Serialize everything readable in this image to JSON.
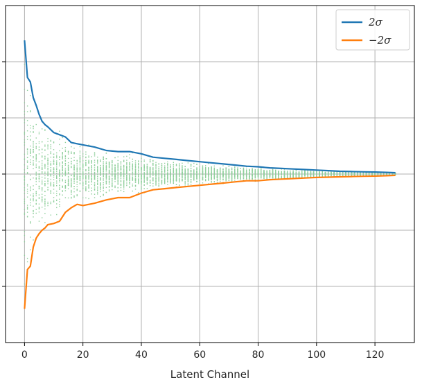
{
  "chart_data": {
    "type": "line",
    "xlabel": "Latent Channel",
    "ylabel": "",
    "title": "",
    "xlim": [
      -6.5,
      133.5
    ],
    "ylim": [
      -1.5,
      1.5
    ],
    "xticks": [
      0,
      20,
      40,
      60,
      80,
      100,
      120
    ],
    "yticks": [
      -1,
      -0.5,
      0,
      0.5,
      1
    ],
    "ytick_labels_visible": false,
    "grid": true,
    "legend_position": "top-right",
    "colors": {
      "pos": "#1f77b4",
      "neg": "#ff7f0e",
      "points": "#8fcf9b",
      "grid": "#b0b0b0"
    },
    "series": [
      {
        "name": "2σ",
        "color": "#1f77b4",
        "x": [
          0,
          1,
          2,
          3,
          4,
          5,
          6,
          7,
          8,
          10,
          12,
          14,
          16,
          18,
          20,
          24,
          28,
          32,
          36,
          40,
          44,
          48,
          52,
          56,
          60,
          64,
          68,
          72,
          76,
          80,
          84,
          88,
          92,
          96,
          100,
          104,
          108,
          112,
          116,
          120,
          124,
          127
        ],
        "values": [
          1.19,
          0.86,
          0.82,
          0.68,
          0.61,
          0.53,
          0.47,
          0.44,
          0.42,
          0.37,
          0.35,
          0.33,
          0.28,
          0.27,
          0.26,
          0.24,
          0.21,
          0.2,
          0.2,
          0.18,
          0.15,
          0.14,
          0.13,
          0.12,
          0.11,
          0.1,
          0.09,
          0.08,
          0.07,
          0.065,
          0.055,
          0.05,
          0.045,
          0.04,
          0.035,
          0.03,
          0.025,
          0.022,
          0.02,
          0.018,
          0.015,
          0.012
        ]
      },
      {
        "name": "−2σ",
        "color": "#ff7f0e",
        "x": [
          0,
          1,
          2,
          3,
          4,
          5,
          6,
          7,
          8,
          10,
          12,
          14,
          16,
          18,
          20,
          24,
          28,
          32,
          36,
          40,
          44,
          48,
          52,
          56,
          60,
          64,
          68,
          72,
          76,
          80,
          84,
          88,
          92,
          96,
          100,
          104,
          108,
          112,
          116,
          120,
          124,
          127
        ],
        "values": [
          -1.2,
          -0.85,
          -0.82,
          -0.65,
          -0.57,
          -0.53,
          -0.5,
          -0.48,
          -0.45,
          -0.44,
          -0.42,
          -0.34,
          -0.3,
          -0.27,
          -0.28,
          -0.26,
          -0.23,
          -0.21,
          -0.21,
          -0.17,
          -0.14,
          -0.13,
          -0.12,
          -0.11,
          -0.1,
          -0.09,
          -0.08,
          -0.07,
          -0.06,
          -0.06,
          -0.05,
          -0.045,
          -0.04,
          -0.035,
          -0.03,
          -0.028,
          -0.025,
          -0.022,
          -0.02,
          -0.018,
          -0.015,
          -0.012
        ]
      }
    ],
    "scatter_points": {
      "name": "",
      "x_range": [
        0,
        127
      ],
      "description_free": true
    }
  }
}
